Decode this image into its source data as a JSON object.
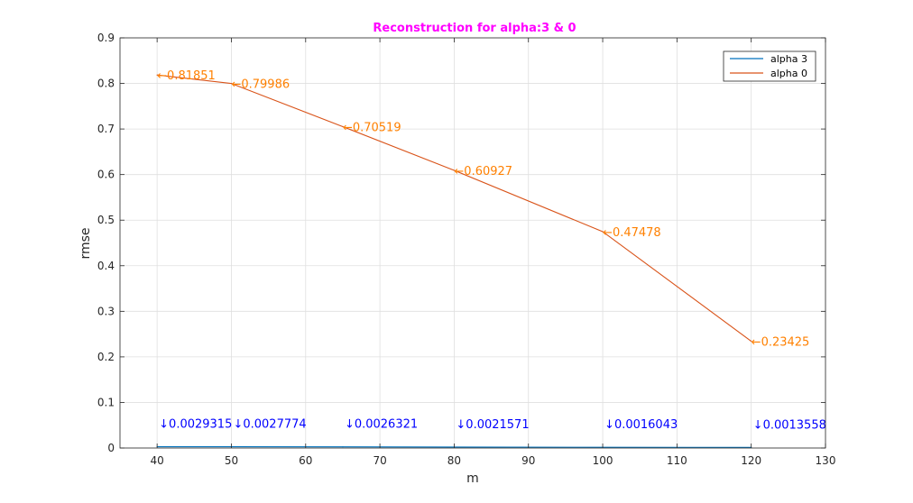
{
  "chart_data": {
    "type": "line",
    "title": "Reconstruction for alpha:3 & 0",
    "title_color": "#ff00ff",
    "xlabel": "m",
    "ylabel": "rmse",
    "xlim": [
      35,
      130
    ],
    "ylim": [
      0,
      0.9
    ],
    "xticks": [
      40,
      50,
      60,
      70,
      80,
      90,
      100,
      110,
      120,
      130
    ],
    "yticks": [
      0,
      0.1,
      0.2,
      0.3,
      0.4,
      0.5,
      0.6,
      0.7,
      0.8,
      0.9
    ],
    "grid": true,
    "legend_position": "top-right",
    "x": [
      40,
      50,
      65,
      80,
      100,
      120
    ],
    "series": [
      {
        "name": "alpha 3",
        "color": "#0072bd",
        "values": [
          0.0029315,
          0.0027774,
          0.0026321,
          0.0021571,
          0.0016043,
          0.0013558
        ],
        "labels": [
          "↓0.0029315",
          "↓0.0027774",
          "↓0.0026321",
          "↓0.0021571",
          "↓0.0016043",
          "↓0.0013558"
        ],
        "label_color": "#0000ff"
      },
      {
        "name": "alpha 0",
        "color": "#d95319",
        "values": [
          0.81851,
          0.79986,
          0.70519,
          0.60927,
          0.47478,
          0.23425
        ],
        "labels": [
          "←0.81851",
          "←0.79986",
          "←0.70519",
          "←0.60927",
          "←0.47478",
          "←0.23425"
        ],
        "label_color": "#ff8000"
      }
    ]
  }
}
